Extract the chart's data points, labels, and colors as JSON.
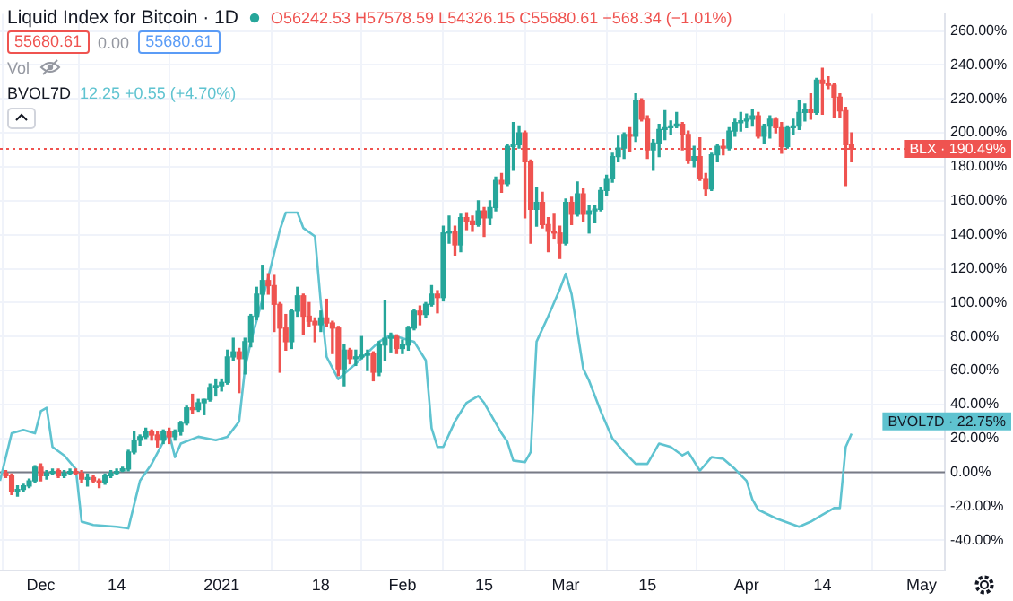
{
  "chart_data": {
    "type": "candlestick",
    "title": "Liquid Index for Bitcoin · 1D",
    "annotations": [
      "O56242.53 H57578.59 L54326.15 C55680.61 −568.34 (−1.01%)",
      "55680.61",
      "0.00",
      "55680.61",
      "Vol",
      "BVOL7D",
      "12.25 +0.55 (+4.70%)",
      {
        "text": "BVOL7D · 22.75%",
        "x": "2021-04-19",
        "y": 22.75
      }
    ],
    "series": [
      {
        "type": "candlestick",
        "x": [
          "2020-11-25",
          "2020-11-26",
          "2020-11-27",
          "2020-11-28",
          "2020-11-29",
          "2020-11-30",
          "2020-12-01",
          "2020-12-02",
          "2020-12-03",
          "2020-12-04",
          "2020-12-05",
          "2020-12-06",
          "2020-12-07",
          "2020-12-08",
          "2020-12-09",
          "2020-12-10",
          "2020-12-11",
          "2020-12-12",
          "2020-12-13",
          "2020-12-14",
          "2020-12-15",
          "2020-12-16",
          "2020-12-17",
          "2020-12-18",
          "2020-12-19",
          "2020-12-20",
          "2020-12-21",
          "2020-12-22",
          "2020-12-23",
          "2020-12-24",
          "2020-12-25",
          "2020-12-26",
          "2020-12-27",
          "2020-12-28",
          "2020-12-29",
          "2020-12-30",
          "2020-12-31",
          "2021-01-01",
          "2021-01-02",
          "2021-01-03",
          "2021-01-04",
          "2021-01-05",
          "2021-01-06",
          "2021-01-07",
          "2021-01-08",
          "2021-01-09",
          "2021-01-10",
          "2021-01-11",
          "2021-01-12",
          "2021-01-13",
          "2021-01-14",
          "2021-01-15",
          "2021-01-16",
          "2021-01-17",
          "2021-01-18",
          "2021-01-19",
          "2021-01-20",
          "2021-01-21",
          "2021-01-22",
          "2021-01-23",
          "2021-01-24",
          "2021-01-25",
          "2021-01-26",
          "2021-01-27",
          "2021-01-28",
          "2021-01-29",
          "2021-01-30",
          "2021-01-31",
          "2021-02-01",
          "2021-02-02",
          "2021-02-03",
          "2021-02-04",
          "2021-02-05",
          "2021-02-06",
          "2021-02-07",
          "2021-02-08",
          "2021-02-09",
          "2021-02-10",
          "2021-02-11",
          "2021-02-12",
          "2021-02-13",
          "2021-02-14",
          "2021-02-15",
          "2021-02-16",
          "2021-02-17",
          "2021-02-18",
          "2021-02-19",
          "2021-02-20",
          "2021-02-21",
          "2021-02-22",
          "2021-02-23",
          "2021-02-24",
          "2021-02-25",
          "2021-02-26",
          "2021-02-27",
          "2021-02-28",
          "2021-03-01",
          "2021-03-02",
          "2021-03-03",
          "2021-03-04",
          "2021-03-05",
          "2021-03-06",
          "2021-03-07",
          "2021-03-08",
          "2021-03-09",
          "2021-03-10",
          "2021-03-11",
          "2021-03-12",
          "2021-03-13",
          "2021-03-14",
          "2021-03-15",
          "2021-03-16",
          "2021-03-17",
          "2021-03-18",
          "2021-03-19",
          "2021-03-20",
          "2021-03-21",
          "2021-03-22",
          "2021-03-23",
          "2021-03-24",
          "2021-03-25",
          "2021-03-26",
          "2021-03-27",
          "2021-03-28",
          "2021-03-29",
          "2021-03-30",
          "2021-03-31",
          "2021-04-01",
          "2021-04-02",
          "2021-04-03",
          "2021-04-04",
          "2021-04-05",
          "2021-04-06",
          "2021-04-07",
          "2021-04-08",
          "2021-04-09",
          "2021-04-10",
          "2021-04-11",
          "2021-04-12",
          "2021-04-13",
          "2021-04-14",
          "2021-04-15",
          "2021-04-16",
          "2021-04-17",
          "2021-04-18",
          "2021-04-19"
        ],
        "ohlc": [
          [
            0,
            1,
            -3,
            -2
          ],
          [
            -2,
            -1,
            -13,
            -11
          ],
          [
            -11,
            -8,
            -14,
            -10
          ],
          [
            -10,
            -7,
            -11,
            -8
          ],
          [
            -8,
            -4,
            -9,
            -5
          ],
          [
            -5,
            4,
            -6,
            3
          ],
          [
            3,
            5,
            -5,
            -2
          ],
          [
            -2,
            1,
            -4,
            0
          ],
          [
            0,
            2,
            -1,
            1
          ],
          [
            1,
            2,
            -3,
            -2
          ],
          [
            -2,
            1,
            -3,
            0
          ],
          [
            0,
            2,
            -1,
            1
          ],
          [
            1,
            2,
            -1,
            0
          ],
          [
            0,
            1,
            -6,
            -4
          ],
          [
            -4,
            -1,
            -8,
            -3
          ],
          [
            -3,
            -2,
            -6,
            -5
          ],
          [
            -5,
            -4,
            -9,
            -6
          ],
          [
            -6,
            -1,
            -7,
            -2
          ],
          [
            -2,
            1,
            -3,
            0
          ],
          [
            0,
            2,
            -1,
            1
          ],
          [
            1,
            3,
            0,
            2
          ],
          [
            2,
            13,
            1,
            12
          ],
          [
            12,
            24,
            11,
            19
          ],
          [
            19,
            22,
            16,
            21
          ],
          [
            21,
            26,
            20,
            24
          ],
          [
            24,
            25,
            19,
            22
          ],
          [
            22,
            24,
            15,
            19
          ],
          [
            19,
            25,
            17,
            24
          ],
          [
            24,
            26,
            17,
            21
          ],
          [
            21,
            25,
            19,
            24
          ],
          [
            24,
            30,
            22,
            29
          ],
          [
            29,
            39,
            28,
            38
          ],
          [
            38,
            46,
            35,
            37
          ],
          [
            37,
            43,
            36,
            41
          ],
          [
            41,
            43,
            34,
            43
          ],
          [
            43,
            52,
            42,
            50
          ],
          [
            50,
            55,
            45,
            51
          ],
          [
            51,
            55,
            48,
            53
          ],
          [
            53,
            72,
            52,
            68
          ],
          [
            68,
            79,
            66,
            71
          ],
          [
            71,
            73,
            47,
            67
          ],
          [
            67,
            79,
            58,
            77
          ],
          [
            77,
            93,
            74,
            92
          ],
          [
            92,
            109,
            90,
            105
          ],
          [
            105,
            122,
            96,
            113
          ],
          [
            113,
            117,
            105,
            110
          ],
          [
            110,
            116,
            83,
            99
          ],
          [
            99,
            100,
            59,
            85
          ],
          [
            85,
            93,
            72,
            77
          ],
          [
            77,
            96,
            73,
            95
          ],
          [
            95,
            109,
            92,
            104
          ],
          [
            104,
            105,
            81,
            92
          ],
          [
            92,
            100,
            86,
            89
          ],
          [
            89,
            91,
            77,
            87
          ],
          [
            87,
            95,
            83,
            91
          ],
          [
            91,
            102,
            86,
            88
          ],
          [
            88,
            89,
            70,
            85
          ],
          [
            85,
            86,
            57,
            61
          ],
          [
            61,
            75,
            51,
            72
          ],
          [
            72,
            73,
            64,
            67
          ],
          [
            67,
            72,
            63,
            68
          ],
          [
            68,
            80,
            67,
            69
          ],
          [
            69,
            72,
            60,
            70
          ],
          [
            70,
            71,
            54,
            59
          ],
          [
            59,
            77,
            57,
            75
          ],
          [
            75,
            101,
            66,
            79
          ],
          [
            79,
            82,
            71,
            80
          ],
          [
            80,
            81,
            70,
            73
          ],
          [
            73,
            78,
            70,
            75
          ],
          [
            75,
            86,
            72,
            85
          ],
          [
            85,
            96,
            84,
            95
          ],
          [
            95,
            98,
            87,
            93
          ],
          [
            93,
            100,
            91,
            99
          ],
          [
            99,
            110,
            98,
            105
          ],
          [
            105,
            107,
            94,
            103
          ],
          [
            103,
            145,
            101,
            141
          ],
          [
            141,
            151,
            135,
            142
          ],
          [
            142,
            145,
            128,
            134
          ],
          [
            134,
            152,
            130,
            150
          ],
          [
            150,
            153,
            143,
            148
          ],
          [
            148,
            151,
            142,
            146
          ],
          [
            146,
            160,
            145,
            154
          ],
          [
            154,
            156,
            139,
            150
          ],
          [
            150,
            160,
            146,
            156
          ],
          [
            156,
            174,
            154,
            172
          ],
          [
            172,
            176,
            165,
            170
          ],
          [
            170,
            193,
            169,
            192
          ],
          [
            192,
            206,
            178,
            193
          ],
          [
            193,
            204,
            191,
            200
          ],
          [
            200,
            201,
            150,
            183
          ],
          [
            183,
            184,
            135,
            155
          ],
          [
            155,
            168,
            145,
            159
          ],
          [
            159,
            165,
            144,
            146
          ],
          [
            146,
            150,
            130,
            142
          ],
          [
            142,
            152,
            138,
            141
          ],
          [
            141,
            145,
            126,
            135
          ],
          [
            135,
            161,
            134,
            159
          ],
          [
            159,
            162,
            146,
            152
          ],
          [
            152,
            171,
            151,
            164
          ],
          [
            164,
            167,
            148,
            152
          ],
          [
            152,
            157,
            141,
            154
          ],
          [
            154,
            157,
            147,
            155
          ],
          [
            155,
            168,
            154,
            166
          ],
          [
            166,
            175,
            163,
            173
          ],
          [
            173,
            188,
            171,
            186
          ],
          [
            186,
            198,
            183,
            191
          ],
          [
            191,
            200,
            185,
            199
          ],
          [
            199,
            203,
            189,
            198
          ],
          [
            198,
            223,
            195,
            219
          ],
          [
            219,
            220,
            207,
            208
          ],
          [
            208,
            210,
            185,
            190
          ],
          [
            190,
            196,
            178,
            194
          ],
          [
            194,
            205,
            186,
            202
          ],
          [
            202,
            213,
            196,
            203
          ],
          [
            203,
            207,
            199,
            204
          ],
          [
            204,
            212,
            203,
            205
          ],
          [
            205,
            206,
            190,
            199
          ],
          [
            199,
            201,
            182,
            184
          ],
          [
            184,
            192,
            180,
            186
          ],
          [
            186,
            197,
            172,
            173
          ],
          [
            173,
            176,
            163,
            167
          ],
          [
            167,
            188,
            166,
            187
          ],
          [
            187,
            193,
            183,
            192
          ],
          [
            192,
            196,
            187,
            191
          ],
          [
            191,
            203,
            190,
            201
          ],
          [
            201,
            208,
            198,
            206
          ],
          [
            206,
            212,
            201,
            207
          ],
          [
            207,
            211,
            203,
            208
          ],
          [
            208,
            214,
            204,
            210
          ],
          [
            210,
            212,
            197,
            198
          ],
          [
            198,
            205,
            194,
            204
          ],
          [
            204,
            210,
            197,
            208
          ],
          [
            208,
            209,
            200,
            203
          ],
          [
            203,
            206,
            188,
            192
          ],
          [
            192,
            204,
            191,
            203
          ],
          [
            203,
            208,
            199,
            204
          ],
          [
            204,
            219,
            202,
            212
          ],
          [
            212,
            217,
            207,
            214
          ],
          [
            214,
            223,
            208,
            212
          ],
          [
            212,
            232,
            211,
            231
          ],
          [
            231,
            238,
            211,
            229
          ],
          [
            229,
            233,
            226,
            228
          ],
          [
            228,
            229,
            209,
            221
          ],
          [
            221,
            223,
            209,
            213
          ],
          [
            213,
            215,
            169,
            193
          ],
          [
            193,
            200,
            183,
            190.49
          ]
        ],
        "colors": [
          "#ef5350",
          "#ef5350",
          "#26a69a",
          "#26a69a",
          "#26a69a",
          "#26a69a",
          "#ef5350",
          "#26a69a",
          "#26a69a",
          "#ef5350",
          "#26a69a",
          "#26a69a",
          "#ef5350",
          "#ef5350",
          "#26a69a",
          "#ef5350",
          "#ef5350",
          "#26a69a",
          "#26a69a",
          "#26a69a",
          "#26a69a",
          "#26a69a",
          "#26a69a",
          "#26a69a",
          "#26a69a",
          "#ef5350",
          "#ef5350",
          "#26a69a",
          "#ef5350",
          "#26a69a",
          "#26a69a",
          "#26a69a",
          "#ef5350",
          "#26a69a",
          "#26a69a",
          "#26a69a",
          "#26a69a",
          "#26a69a",
          "#26a69a",
          "#26a69a",
          "#ef5350",
          "#26a69a",
          "#26a69a",
          "#26a69a",
          "#26a69a",
          "#ef5350",
          "#ef5350",
          "#ef5350",
          "#ef5350",
          "#26a69a",
          "#26a69a",
          "#ef5350",
          "#ef5350",
          "#ef5350",
          "#26a69a",
          "#ef5350",
          "#ef5350",
          "#ef5350",
          "#26a69a",
          "#ef5350",
          "#26a69a",
          "#26a69a",
          "#26a69a",
          "#ef5350",
          "#26a69a",
          "#26a69a",
          "#26a69a",
          "#ef5350",
          "#26a69a",
          "#26a69a",
          "#26a69a",
          "#ef5350",
          "#26a69a",
          "#26a69a",
          "#ef5350",
          "#26a69a",
          "#26a69a",
          "#ef5350",
          "#26a69a",
          "#ef5350",
          "#ef5350",
          "#26a69a",
          "#ef5350",
          "#26a69a",
          "#26a69a",
          "#ef5350",
          "#26a69a",
          "#26a69a",
          "#26a69a",
          "#ef5350",
          "#ef5350",
          "#26a69a",
          "#ef5350",
          "#ef5350",
          "#ef5350",
          "#ef5350",
          "#26a69a",
          "#ef5350",
          "#26a69a",
          "#ef5350",
          "#26a69a",
          "#26a69a",
          "#26a69a",
          "#26a69a",
          "#26a69a",
          "#26a69a",
          "#26a69a",
          "#ef5350",
          "#26a69a",
          "#ef5350",
          "#ef5350",
          "#26a69a",
          "#26a69a",
          "#26a69a",
          "#26a69a",
          "#26a69a",
          "#ef5350",
          "#ef5350",
          "#26a69a",
          "#ef5350",
          "#ef5350",
          "#26a69a",
          "#26a69a",
          "#ef5350",
          "#26a69a",
          "#26a69a",
          "#26a69a",
          "#26a69a",
          "#26a69a",
          "#ef5350",
          "#26a69a",
          "#26a69a",
          "#ef5350",
          "#ef5350",
          "#26a69a",
          "#26a69a",
          "#26a69a",
          "#26a69a",
          "#ef5350",
          "#26a69a",
          "#ef5350",
          "#ef5350",
          "#ef5350",
          "#ef5350",
          "#ef5350",
          "#ef5350"
        ]
      },
      {
        "type": "line",
        "color": "#5fc3d0",
        "x": [
          "2020-11-24",
          "2020-11-26",
          "2020-11-28",
          "2020-11-30",
          "2020-12-01",
          "2020-12-02",
          "2020-12-03",
          "2020-12-05",
          "2020-12-07",
          "2020-12-08",
          "2020-12-10",
          "2020-12-14",
          "2020-12-16",
          "2020-12-17",
          "2020-12-18",
          "2020-12-20",
          "2020-12-22",
          "2020-12-23",
          "2020-12-24",
          "2020-12-25",
          "2020-12-28",
          "2020-12-31",
          "2021-01-02",
          "2021-01-04",
          "2021-01-05",
          "2021-01-06",
          "2021-01-08",
          "2021-01-09",
          "2021-01-11",
          "2021-01-12",
          "2021-01-14",
          "2021-01-15",
          "2021-01-17",
          "2021-01-18",
          "2021-01-19",
          "2021-01-21",
          "2021-01-24",
          "2021-01-28",
          "2021-01-30",
          "2021-02-03",
          "2021-02-05",
          "2021-02-06",
          "2021-02-07",
          "2021-02-08",
          "2021-02-10",
          "2021-02-12",
          "2021-02-14",
          "2021-02-15",
          "2021-02-18",
          "2021-02-19",
          "2021-02-20",
          "2021-02-22",
          "2021-02-23",
          "2021-02-24",
          "2021-02-26",
          "2021-02-28",
          "2021-03-01",
          "2021-03-02",
          "2021-03-04",
          "2021-03-05",
          "2021-03-07",
          "2021-03-09",
          "2021-03-11",
          "2021-03-13",
          "2021-03-15",
          "2021-03-17",
          "2021-03-19",
          "2021-03-21",
          "2021-03-22",
          "2021-03-24",
          "2021-03-26",
          "2021-03-28",
          "2021-03-30",
          "2021-04-01",
          "2021-04-02",
          "2021-04-03",
          "2021-04-06",
          "2021-04-10",
          "2021-04-12",
          "2021-04-14",
          "2021-04-16",
          "2021-04-17",
          "2021-04-18",
          "2021-04-19"
        ],
        "values": [
          -5,
          23,
          25,
          23,
          36,
          38,
          15,
          10,
          2,
          -29,
          -31,
          -32,
          -33,
          -19,
          -5,
          5,
          18,
          23,
          9,
          17,
          21,
          19,
          21,
          30,
          61,
          77,
          102,
          115,
          143,
          153,
          153,
          144,
          139,
          100,
          68,
          55,
          64,
          77,
          81,
          77,
          66,
          26,
          15,
          15,
          30,
          41,
          45,
          41,
          23,
          18,
          7,
          6,
          12,
          77,
          92,
          108,
          117,
          105,
          61,
          54,
          36,
          20,
          12,
          5,
          5,
          17,
          15,
          10,
          12,
          1,
          9,
          8,
          2,
          -5,
          -16,
          -22,
          -27,
          -32,
          -29,
          -25,
          -21,
          -21,
          15,
          22.75
        ]
      }
    ],
    "xlim": [
      "2020-11-24",
      "2021-05-05"
    ],
    "xticks": [
      {
        "value": "2020-12-01",
        "label": "Dec"
      },
      {
        "value": "2020-12-14",
        "label": "14"
      },
      {
        "value": "2021-01-01",
        "label": "2021"
      },
      {
        "value": "2021-01-18",
        "label": "18"
      },
      {
        "value": "2021-02-01",
        "label": "Feb"
      },
      {
        "value": "2021-02-15",
        "label": "15"
      },
      {
        "value": "2021-03-01",
        "label": "Mar"
      },
      {
        "value": "2021-03-15",
        "label": "15"
      },
      {
        "value": "2021-04-01",
        "label": "Apr"
      },
      {
        "value": "2021-04-14",
        "label": "14"
      },
      {
        "value": "2021-05-01",
        "label": "May"
      }
    ],
    "ylim": [
      -58,
      270
    ],
    "yticks": [
      {
        "value": -40,
        "label": "-40.00%"
      },
      {
        "value": -20,
        "label": "-20.00%"
      },
      {
        "value": 0,
        "label": "0.00%"
      },
      {
        "value": 20,
        "label": "20.00%"
      },
      {
        "value": 40,
        "label": "40.00%"
      },
      {
        "value": 60,
        "label": "60.00%"
      },
      {
        "value": 80,
        "label": "80.00%"
      },
      {
        "value": 100,
        "label": "100.00%"
      },
      {
        "value": 120,
        "label": "120.00%"
      },
      {
        "value": 140,
        "label": "140.00%"
      },
      {
        "value": 160,
        "label": "160.00%"
      },
      {
        "value": 180,
        "label": "180.00%"
      },
      {
        "value": 200,
        "label": "200.00%"
      },
      {
        "value": 220,
        "label": "220.00%"
      },
      {
        "value": 240,
        "label": "240.00%"
      },
      {
        "value": 260,
        "label": "260.00%"
      }
    ],
    "ref_lines": [
      {
        "axis": "y",
        "value": 0,
        "color": "#787b86",
        "line_style": "solid"
      },
      {
        "axis": "y",
        "value": 190.49,
        "label": "BLX · 190.49%",
        "color": "#ef5350",
        "line_style": "dotted"
      }
    ],
    "grid": true,
    "legend": false
  }
}
